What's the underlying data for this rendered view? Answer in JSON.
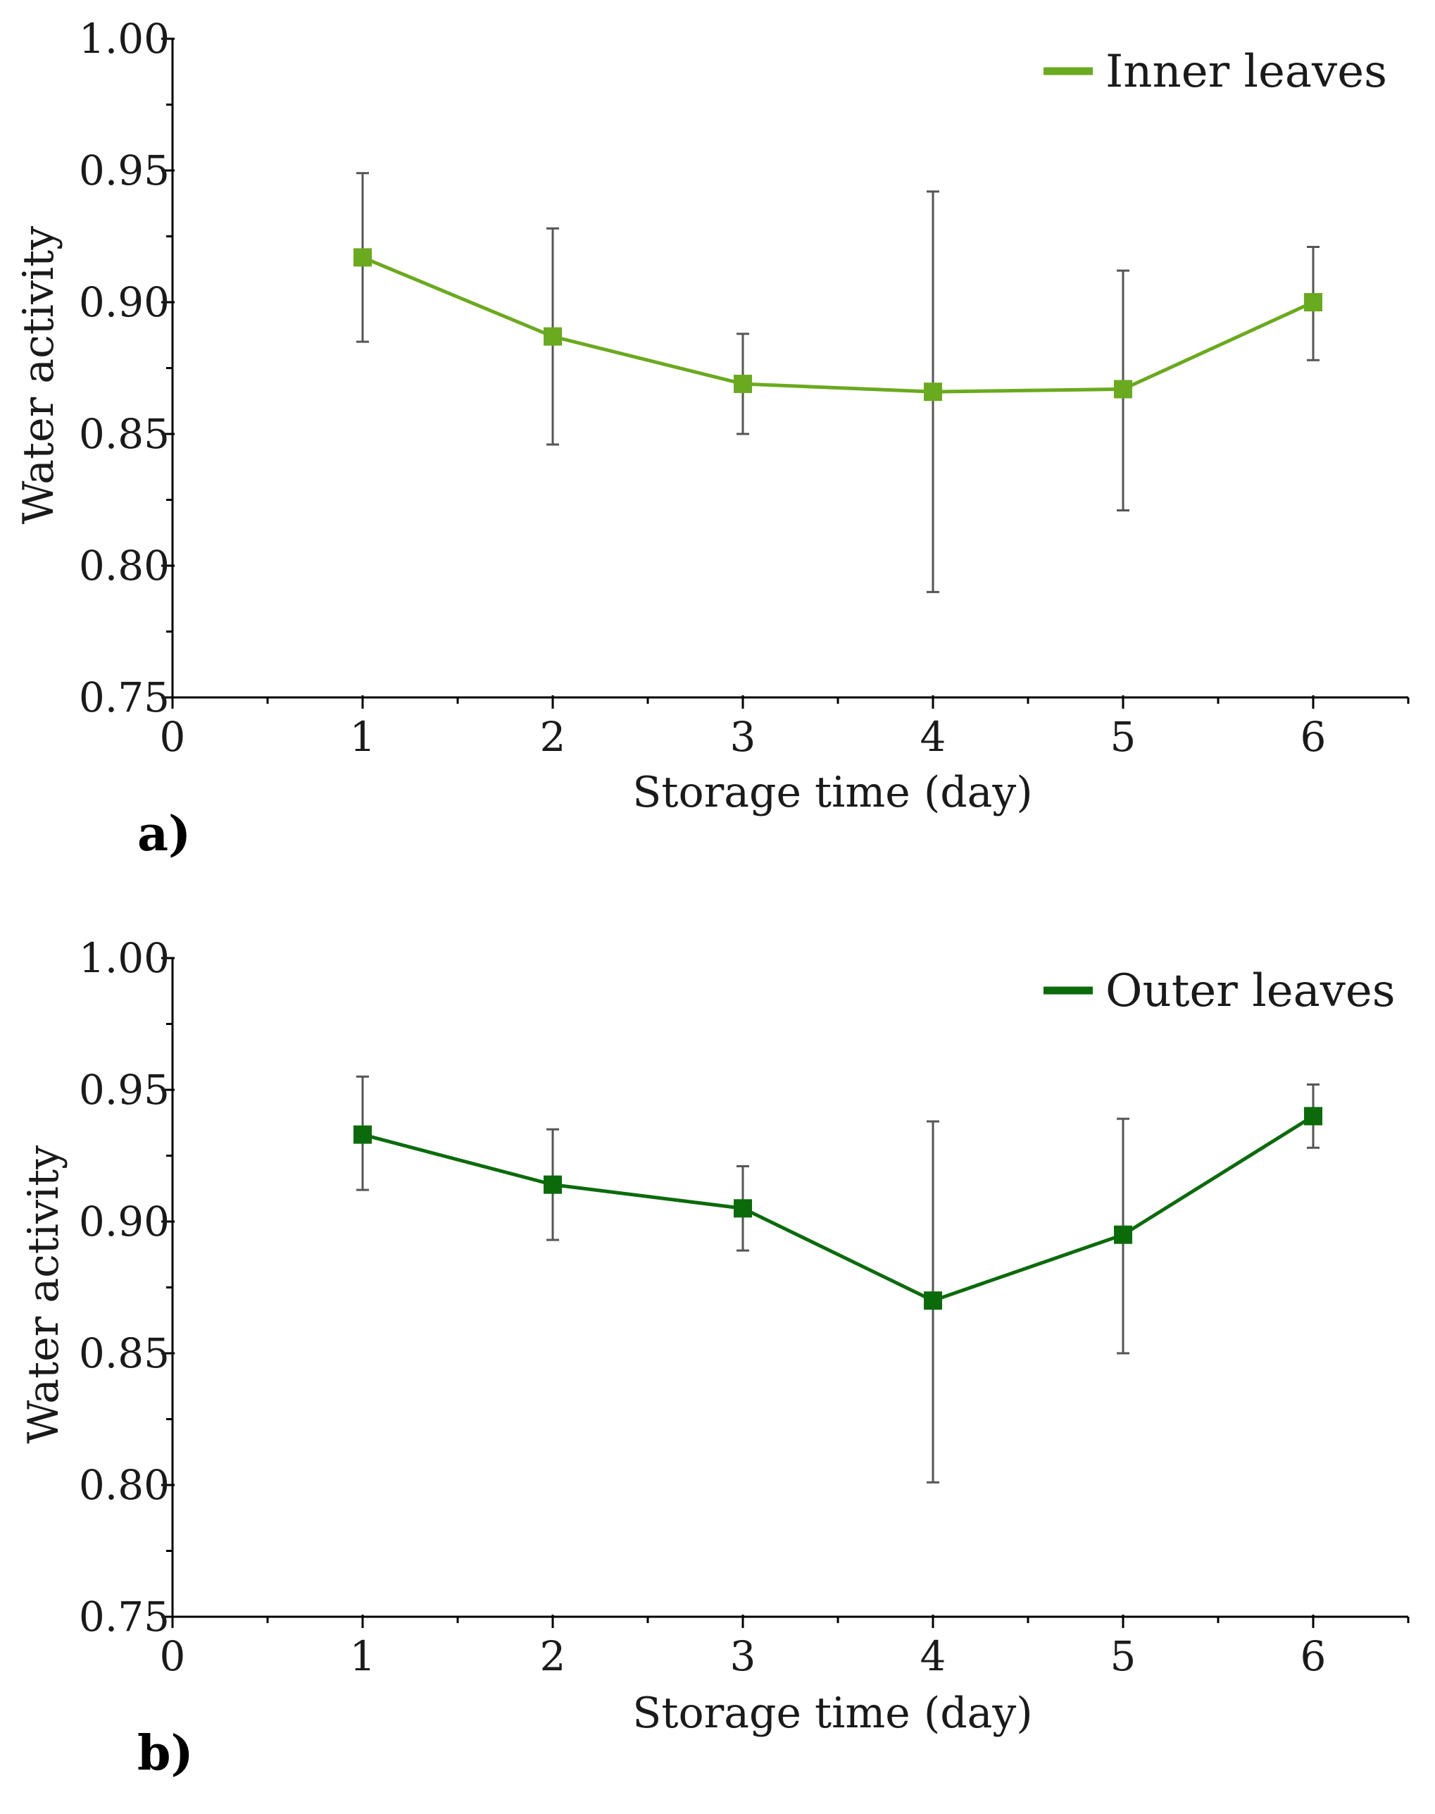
{
  "chart_data": [
    {
      "type": "line",
      "panel_label": "a)",
      "xlabel": "Storage time (day)",
      "ylabel": "Water activity",
      "xlim": [
        0,
        6.5
      ],
      "ylim": [
        0.75,
        1.0
      ],
      "x_ticks": [
        "0",
        "1",
        "2",
        "3",
        "4",
        "5",
        "6"
      ],
      "y_ticks": [
        "0.75",
        "0.80",
        "0.85",
        "0.90",
        "0.95",
        "1.00"
      ],
      "legend": "top-right",
      "grid": false,
      "series": [
        {
          "name": "Inner leaves",
          "color": "#6aaa1e",
          "x": [
            1,
            2,
            3,
            4,
            5,
            6
          ],
          "values": [
            0.917,
            0.887,
            0.869,
            0.866,
            0.867,
            0.9
          ],
          "error_low": [
            0.885,
            0.846,
            0.85,
            0.79,
            0.821,
            0.878
          ],
          "error_high": [
            0.949,
            0.928,
            0.888,
            0.942,
            0.912,
            0.921
          ]
        }
      ]
    },
    {
      "type": "line",
      "panel_label": "b)",
      "xlabel": "Storage time (day)",
      "ylabel": "Water activity",
      "xlim": [
        0,
        6.5
      ],
      "ylim": [
        0.75,
        1.0
      ],
      "x_ticks": [
        "0",
        "1",
        "2",
        "3",
        "4",
        "5",
        "6"
      ],
      "y_ticks": [
        "0.75",
        "0.80",
        "0.85",
        "0.90",
        "0.95",
        "1.00"
      ],
      "legend": "top-right",
      "grid": false,
      "series": [
        {
          "name": "Outer leaves",
          "color": "#0b6b0b",
          "x": [
            1,
            2,
            3,
            4,
            5,
            6
          ],
          "values": [
            0.933,
            0.914,
            0.905,
            0.87,
            0.895,
            0.94
          ],
          "error_low": [
            0.912,
            0.893,
            0.889,
            0.801,
            0.85,
            0.928
          ],
          "error_high": [
            0.955,
            0.935,
            0.921,
            0.938,
            0.939,
            0.952
          ]
        }
      ]
    }
  ]
}
